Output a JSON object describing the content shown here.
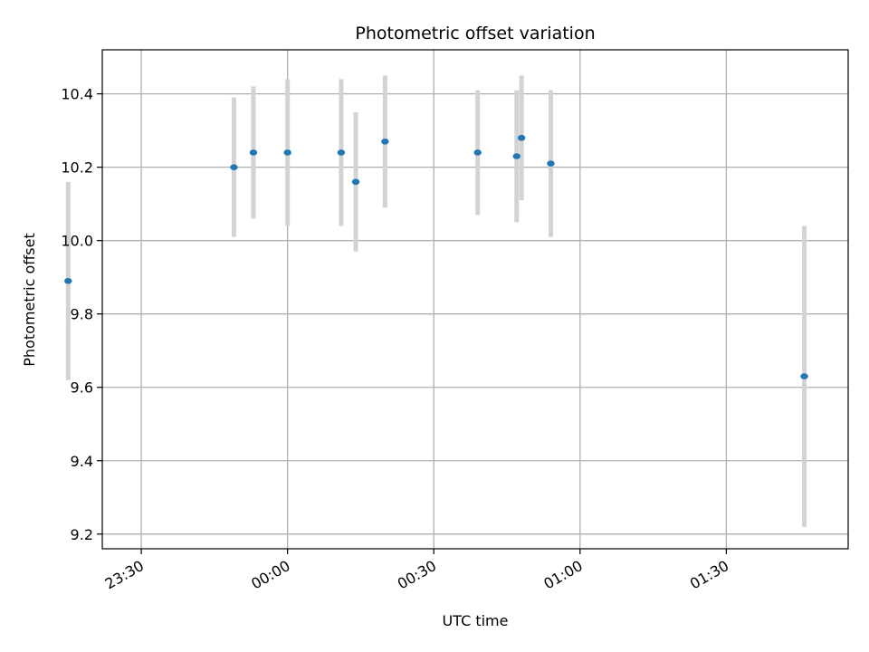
{
  "chart_data": {
    "type": "scatter",
    "title": "Photometric offset variation",
    "xlabel": "UTC time",
    "ylabel": "Photometric offset",
    "x_axis_kind": "time",
    "xlim": [
      "23:22",
      "01:55"
    ],
    "ylim": [
      9.16,
      10.52
    ],
    "x_ticks": [
      "23:30",
      "00:00",
      "00:30",
      "01:00",
      "01:30"
    ],
    "y_ticks": [
      9.2,
      9.4,
      9.6,
      9.8,
      10.0,
      10.2,
      10.4
    ],
    "y_tick_labels": [
      "9.2",
      "9.4",
      "9.6",
      "9.8",
      "10.0",
      "10.2",
      "10.4"
    ],
    "grid": true,
    "legend": "none",
    "point_color": "#1f77b4",
    "errorbar_color": "#d3d3d3",
    "points": [
      {
        "x": "23:15",
        "y": 9.89,
        "err": 0.27
      },
      {
        "x": "23:49",
        "y": 10.2,
        "err": 0.19
      },
      {
        "x": "23:53",
        "y": 10.24,
        "err": 0.18
      },
      {
        "x": "00:00",
        "y": 10.24,
        "err": 0.2
      },
      {
        "x": "00:11",
        "y": 10.24,
        "err": 0.2
      },
      {
        "x": "00:14",
        "y": 10.16,
        "err": 0.19
      },
      {
        "x": "00:20",
        "y": 10.27,
        "err": 0.18
      },
      {
        "x": "00:39",
        "y": 10.24,
        "err": 0.17
      },
      {
        "x": "00:47",
        "y": 10.23,
        "err": 0.18
      },
      {
        "x": "00:48",
        "y": 10.28,
        "err": 0.17
      },
      {
        "x": "00:54",
        "y": 10.21,
        "err": 0.2
      },
      {
        "x": "01:46",
        "y": 9.63,
        "err": 0.41
      }
    ]
  }
}
